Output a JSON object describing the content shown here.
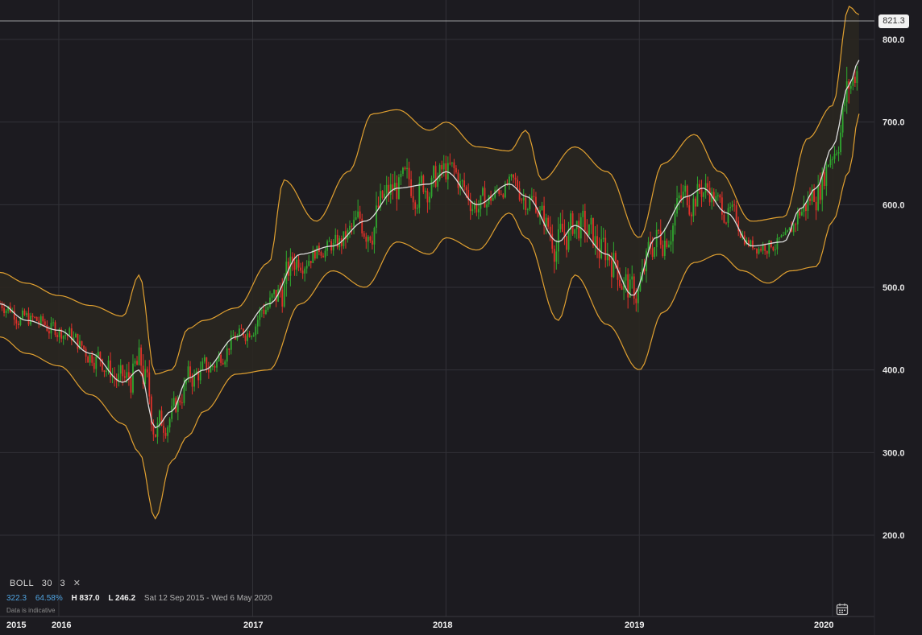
{
  "legend": {
    "indicator": "BOLL",
    "period": "30",
    "stddev": "3",
    "close_symbol": "✕",
    "change_value": "322.3",
    "change_percent": "64.58%",
    "high": "H 837.0",
    "low": "L 246.2",
    "date_range": "Sat 12 Sep 2015 - Wed 6 May 2020",
    "disclaimer": "Data is indicative"
  },
  "current_price_label": "821.3",
  "icons": {
    "calendar": "calendar-icon"
  },
  "colors": {
    "background": "#1c1b20",
    "grid": "#323238",
    "up_candle": "#2fa82f",
    "down_candle": "#e0312a",
    "band": "#e0a030",
    "band_fill": "#2a2720",
    "middle_line": "#dcdcdc"
  },
  "chart_data": {
    "type": "candlestick",
    "indicator": "Bollinger Bands (30, 3)",
    "y_ticks": [
      "200.0",
      "300.0",
      "400.0",
      "500.0",
      "600.0",
      "700.0",
      "800.0"
    ],
    "ylim": [
      160,
      850
    ],
    "x_ticks": [
      "2015",
      "2016",
      "2017",
      "2018",
      "2019",
      "2020"
    ],
    "x_range": [
      "2015-09-12",
      "2020-05-06"
    ],
    "current_price": 821.3,
    "grid": true,
    "middle_band": [
      [
        "2015-09-12",
        480
      ],
      [
        "2015-11-01",
        460
      ],
      [
        "2016-01-01",
        448
      ],
      [
        "2016-03-01",
        420
      ],
      [
        "2016-05-01",
        385
      ],
      [
        "2016-06-01",
        400
      ],
      [
        "2016-07-01",
        330
      ],
      [
        "2016-08-01",
        350
      ],
      [
        "2016-09-01",
        390
      ],
      [
        "2016-10-01",
        400
      ],
      [
        "2016-12-01",
        440
      ],
      [
        "2017-02-01",
        480
      ],
      [
        "2017-04-01",
        540
      ],
      [
        "2017-06-01",
        550
      ],
      [
        "2017-08-01",
        580
      ],
      [
        "2017-10-01",
        620
      ],
      [
        "2017-12-01",
        625
      ],
      [
        "2018-01-01",
        640
      ],
      [
        "2018-03-01",
        600
      ],
      [
        "2018-05-01",
        625
      ],
      [
        "2018-06-01",
        610
      ],
      [
        "2018-08-01",
        555
      ],
      [
        "2018-09-01",
        575
      ],
      [
        "2018-11-01",
        540
      ],
      [
        "2018-12-20",
        490
      ],
      [
        "2019-02-01",
        560
      ],
      [
        "2019-04-01",
        610
      ],
      [
        "2019-05-01",
        620
      ],
      [
        "2019-06-15",
        590
      ],
      [
        "2019-08-01",
        550
      ],
      [
        "2019-10-01",
        555
      ],
      [
        "2019-11-01",
        595
      ],
      [
        "2019-12-01",
        620
      ],
      [
        "2020-01-01",
        670
      ],
      [
        "2020-02-01",
        745
      ],
      [
        "2020-02-20",
        775
      ]
    ],
    "band_upper": [
      [
        "2015-09-12",
        518
      ],
      [
        "2015-11-01",
        505
      ],
      [
        "2016-01-01",
        490
      ],
      [
        "2016-03-01",
        478
      ],
      [
        "2016-05-01",
        465
      ],
      [
        "2016-06-01",
        515
      ],
      [
        "2016-07-01",
        395
      ],
      [
        "2016-08-01",
        400
      ],
      [
        "2016-09-01",
        450
      ],
      [
        "2016-10-01",
        460
      ],
      [
        "2016-12-01",
        475
      ],
      [
        "2017-02-01",
        530
      ],
      [
        "2017-03-01",
        630
      ],
      [
        "2017-05-01",
        580
      ],
      [
        "2017-07-01",
        640
      ],
      [
        "2017-08-15",
        710
      ],
      [
        "2017-10-01",
        715
      ],
      [
        "2017-12-01",
        690
      ],
      [
        "2018-01-01",
        700
      ],
      [
        "2018-03-01",
        670
      ],
      [
        "2018-05-01",
        665
      ],
      [
        "2018-06-01",
        690
      ],
      [
        "2018-07-01",
        630
      ],
      [
        "2018-09-01",
        670
      ],
      [
        "2018-11-01",
        640
      ],
      [
        "2019-01-01",
        560
      ],
      [
        "2019-02-15",
        650
      ],
      [
        "2019-04-15",
        685
      ],
      [
        "2019-06-01",
        640
      ],
      [
        "2019-08-01",
        580
      ],
      [
        "2019-10-01",
        585
      ],
      [
        "2019-11-15",
        680
      ],
      [
        "2020-01-01",
        720
      ],
      [
        "2020-02-01",
        840
      ],
      [
        "2020-02-20",
        830
      ]
    ],
    "band_lower": [
      [
        "2015-09-12",
        440
      ],
      [
        "2015-11-01",
        420
      ],
      [
        "2016-01-01",
        405
      ],
      [
        "2016-03-01",
        370
      ],
      [
        "2016-05-01",
        335
      ],
      [
        "2016-06-01",
        300
      ],
      [
        "2016-07-01",
        220
      ],
      [
        "2016-08-01",
        290
      ],
      [
        "2016-09-01",
        320
      ],
      [
        "2016-10-01",
        350
      ],
      [
        "2016-12-01",
        395
      ],
      [
        "2017-02-01",
        400
      ],
      [
        "2017-04-01",
        480
      ],
      [
        "2017-06-01",
        520
      ],
      [
        "2017-08-01",
        500
      ],
      [
        "2017-10-01",
        555
      ],
      [
        "2017-12-01",
        540
      ],
      [
        "2018-01-01",
        560
      ],
      [
        "2018-03-01",
        545
      ],
      [
        "2018-05-01",
        590
      ],
      [
        "2018-06-01",
        560
      ],
      [
        "2018-08-01",
        460
      ],
      [
        "2018-09-01",
        515
      ],
      [
        "2018-11-01",
        455
      ],
      [
        "2019-01-01",
        400
      ],
      [
        "2019-02-15",
        470
      ],
      [
        "2019-04-15",
        530
      ],
      [
        "2019-06-01",
        540
      ],
      [
        "2019-07-15",
        520
      ],
      [
        "2019-09-01",
        505
      ],
      [
        "2019-10-15",
        520
      ],
      [
        "2019-12-01",
        525
      ],
      [
        "2020-01-01",
        580
      ],
      [
        "2020-02-01",
        640
      ],
      [
        "2020-02-20",
        710
      ]
    ]
  }
}
